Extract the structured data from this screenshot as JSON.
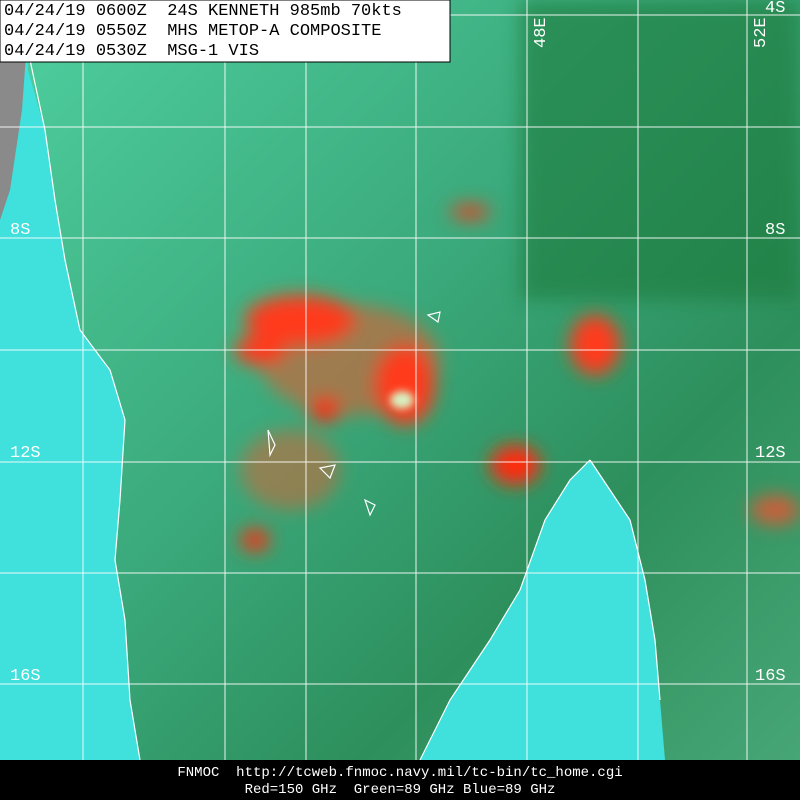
{
  "header": {
    "lines": [
      "04/24/19 0600Z  24S KENNETH 985mb 70kts",
      "04/24/19 0550Z  MHS METOP-A COMPOSITE",
      "04/24/19 0530Z  MSG-1 VIS"
    ]
  },
  "grid_labels": {
    "lon": [
      "48E",
      "52E"
    ],
    "lat_left": [
      "8S",
      "12S",
      "16S"
    ],
    "lat_right": [
      "4S",
      "8S",
      "12S",
      "16S"
    ]
  },
  "footer": {
    "lines": [
      "FNMOC  http://tcweb.fnmoc.navy.mil/tc-bin/tc_home.cgi",
      "Red=150 GHz  Green=89 GHz Blue=89 GHz"
    ]
  }
}
